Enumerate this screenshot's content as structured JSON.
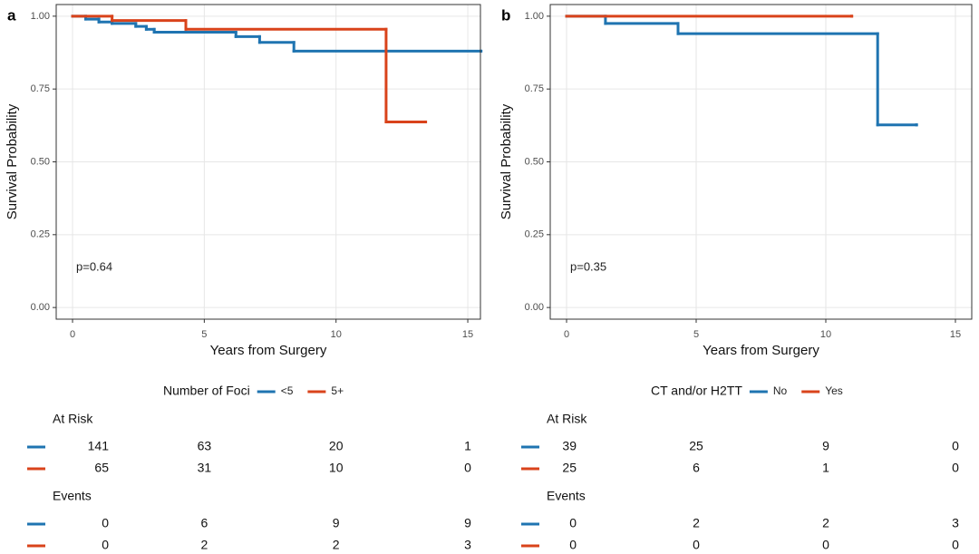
{
  "chart_data": [
    {
      "type": "step",
      "panel_label": "a",
      "x_label": "Years from Surgery",
      "y_label": "Survival Probability",
      "annotation": "p=0.64",
      "legend_title": "Number of Foci",
      "xlim": [
        -0.62,
        15.48
      ],
      "ylim": [
        -0.04,
        1.04
      ],
      "grid": true,
      "xticks": [
        0,
        5,
        10,
        15
      ],
      "yticks": [
        {
          "value": 0,
          "label": "0.00"
        },
        {
          "value": 0.25,
          "label": "0.25"
        },
        {
          "value": 0.5,
          "label": "0.50"
        },
        {
          "value": 0.75,
          "label": "0.75"
        },
        {
          "value": 1,
          "label": "1.00"
        }
      ],
      "series": [
        {
          "name": "<5",
          "color": "#1f74b1",
          "x": [
            0,
            0.5,
            1.0,
            1.5,
            2.4,
            2.8,
            3.1,
            4.3,
            6.2,
            7.1,
            8.4,
            15.5
          ],
          "values": [
            1.0,
            0.99,
            0.98,
            0.975,
            0.965,
            0.955,
            0.945,
            0.945,
            0.93,
            0.91,
            0.88,
            0.88
          ]
        },
        {
          "name": "5+",
          "color": "#d9431b",
          "x": [
            0,
            1.5,
            4.3,
            11.9,
            13.4
          ],
          "values": [
            1.0,
            0.985,
            0.955,
            0.637,
            0.637
          ]
        }
      ],
      "risk_table": {
        "title": "At Risk",
        "rows": [
          [
            141,
            63,
            20,
            1
          ],
          [
            65,
            31,
            10,
            0
          ]
        ]
      },
      "events_table": {
        "title": "Events",
        "rows": [
          [
            0,
            6,
            9,
            9
          ],
          [
            0,
            2,
            2,
            3
          ]
        ]
      }
    },
    {
      "type": "step",
      "panel_label": "b",
      "x_label": "Years from Surgery",
      "y_label": "Survival Probability",
      "annotation": "p=0.35",
      "legend_title": "CT and/or H2TT",
      "xlim": [
        -0.63,
        15.63
      ],
      "ylim": [
        -0.04,
        1.04
      ],
      "grid": true,
      "xticks": [
        0,
        5,
        10,
        15
      ],
      "yticks": [
        {
          "value": 0,
          "label": "0.00"
        },
        {
          "value": 0.25,
          "label": "0.25"
        },
        {
          "value": 0.5,
          "label": "0.50"
        },
        {
          "value": 0.75,
          "label": "0.75"
        },
        {
          "value": 1,
          "label": "1.00"
        }
      ],
      "series": [
        {
          "name": "No",
          "color": "#1f74b1",
          "x": [
            0,
            1.5,
            4.3,
            12.0,
            13.5
          ],
          "values": [
            1.0,
            0.975,
            0.94,
            0.627,
            0.627
          ]
        },
        {
          "name": "Yes",
          "color": "#d9431b",
          "x": [
            0,
            11.0
          ],
          "values": [
            1.0,
            1.0
          ]
        }
      ],
      "risk_table": {
        "title": "At Risk",
        "rows": [
          [
            39,
            25,
            9,
            0
          ],
          [
            25,
            6,
            1,
            0
          ]
        ]
      },
      "events_table": {
        "title": "Events",
        "rows": [
          [
            0,
            2,
            2,
            3
          ],
          [
            0,
            0,
            0,
            0
          ]
        ]
      }
    }
  ]
}
